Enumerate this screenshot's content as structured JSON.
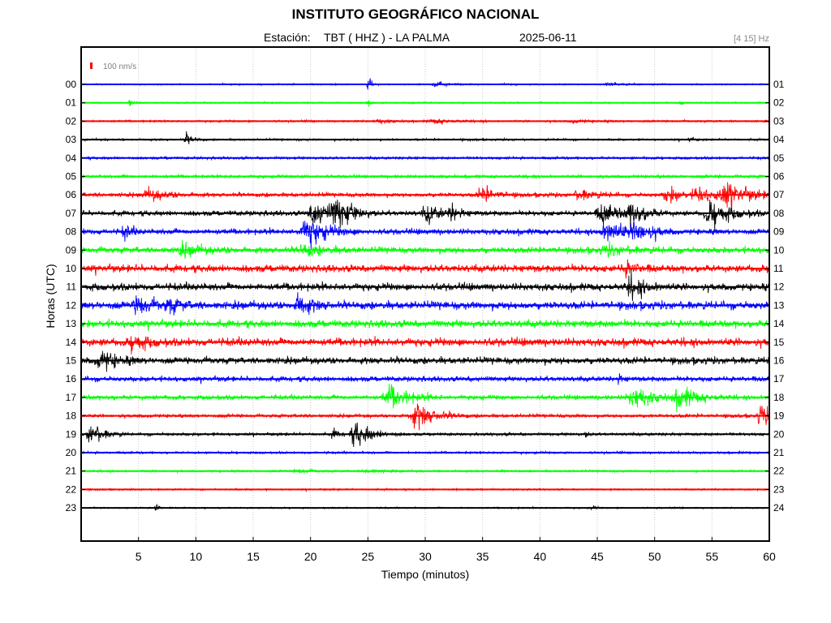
{
  "header": {
    "title": "INSTITUTO GEOGRÁFICO NACIONAL",
    "station_prefix": "Estación:",
    "station": "TBT ( HHZ ) - LA PALMA",
    "date": "2025-06-11",
    "band": "[4 15] Hz"
  },
  "chart_data": {
    "type": "line",
    "xlabel": "Tiempo (minutos)",
    "ylabel": "Horas (UTC)",
    "xlim": [
      0,
      60
    ],
    "x_ticks": [
      5,
      10,
      15,
      20,
      25,
      30,
      35,
      40,
      45,
      50,
      55,
      60
    ],
    "grid": true,
    "scale_label": "100 nm/s",
    "left_tick_labels": [
      "00",
      "01",
      "02",
      "03",
      "04",
      "05",
      "06",
      "07",
      "08",
      "09",
      "10",
      "11",
      "12",
      "13",
      "14",
      "15",
      "16",
      "17",
      "18",
      "19",
      "20",
      "21",
      "22",
      "23"
    ],
    "right_tick_labels": [
      "01",
      "02",
      "03",
      "04",
      "05",
      "06",
      "07",
      "08",
      "09",
      "10",
      "11",
      "12",
      "13",
      "14",
      "15",
      "16",
      "17",
      "18",
      "19",
      "20",
      "21",
      "22",
      "23",
      "24"
    ],
    "trace_colors": [
      "#0000ff",
      "#00ff00",
      "#ff0000",
      "#000000"
    ],
    "traces": [
      {
        "hour": "00",
        "noise": 0.25,
        "events": [
          {
            "t": 25.0,
            "amp": 4.5,
            "dur": 0.25
          },
          {
            "t": 31.0,
            "amp": 0.8,
            "dur": 1.0
          },
          {
            "t": 46.0,
            "amp": 0.7,
            "dur": 1.0
          }
        ]
      },
      {
        "hour": "01",
        "noise": 0.25,
        "events": [
          {
            "t": 4.2,
            "amp": 1.8,
            "dur": 0.25
          },
          {
            "t": 25.0,
            "amp": 1.2,
            "dur": 0.3
          },
          {
            "t": 52.2,
            "amp": 1.1,
            "dur": 0.25
          }
        ]
      },
      {
        "hour": "02",
        "noise": 0.35,
        "events": [
          {
            "t": 26.0,
            "amp": 0.7,
            "dur": 1.0
          },
          {
            "t": 31.0,
            "amp": 0.8,
            "dur": 1.5
          },
          {
            "t": 43.0,
            "amp": 0.6,
            "dur": 1.0
          }
        ]
      },
      {
        "hour": "03",
        "noise": 0.35,
        "events": [
          {
            "t": 9.2,
            "amp": 1.8,
            "dur": 0.6
          },
          {
            "t": 53.0,
            "amp": 1.0,
            "dur": 0.3
          }
        ]
      },
      {
        "hour": "04",
        "noise": 0.45,
        "events": []
      },
      {
        "hour": "05",
        "noise": 0.55,
        "events": []
      },
      {
        "hour": "06",
        "noise": 0.75,
        "events": [
          {
            "t": 6.0,
            "amp": 1.8,
            "dur": 1.5
          },
          {
            "t": 35.0,
            "amp": 3.0,
            "dur": 1.0
          },
          {
            "t": 43.5,
            "amp": 1.8,
            "dur": 1.2
          },
          {
            "t": 51.2,
            "amp": 3.0,
            "dur": 1.0
          },
          {
            "t": 53.8,
            "amp": 3.2,
            "dur": 1.0
          },
          {
            "t": 56.3,
            "amp": 4.5,
            "dur": 1.8
          }
        ]
      },
      {
        "hour": "07",
        "noise": 0.9,
        "events": [
          {
            "t": 20.5,
            "amp": 4.5,
            "dur": 1.5
          },
          {
            "t": 22.3,
            "amp": 5.0,
            "dur": 1.2
          },
          {
            "t": 30.2,
            "amp": 3.2,
            "dur": 1.0
          },
          {
            "t": 32.3,
            "amp": 2.2,
            "dur": 0.8
          },
          {
            "t": 45.5,
            "amp": 3.8,
            "dur": 1.2
          },
          {
            "t": 48.0,
            "amp": 4.0,
            "dur": 1.2
          },
          {
            "t": 55.0,
            "amp": 4.5,
            "dur": 1.5
          }
        ]
      },
      {
        "hour": "08",
        "noise": 1.0,
        "events": [
          {
            "t": 3.8,
            "amp": 2.5,
            "dur": 0.5
          },
          {
            "t": 19.8,
            "amp": 5.0,
            "dur": 1.5
          },
          {
            "t": 46.0,
            "amp": 4.0,
            "dur": 1.5
          },
          {
            "t": 48.5,
            "amp": 3.5,
            "dur": 1.2
          }
        ]
      },
      {
        "hour": "09",
        "noise": 1.1,
        "events": [
          {
            "t": 9.0,
            "amp": 1.8,
            "dur": 1.5
          },
          {
            "t": 19.5,
            "amp": 1.8,
            "dur": 1.5
          },
          {
            "t": 46.0,
            "amp": 1.5,
            "dur": 1.5
          }
        ]
      },
      {
        "hour": "10",
        "noise": 1.3,
        "events": [
          {
            "t": 47.5,
            "amp": 2.0,
            "dur": 1.0
          }
        ]
      },
      {
        "hour": "11",
        "noise": 1.3,
        "events": [
          {
            "t": 48.0,
            "amp": 3.2,
            "dur": 1.2
          }
        ]
      },
      {
        "hour": "12",
        "noise": 1.4,
        "events": [
          {
            "t": 5.0,
            "amp": 3.5,
            "dur": 1.0
          },
          {
            "t": 7.7,
            "amp": 2.4,
            "dur": 1.0
          },
          {
            "t": 19.0,
            "amp": 3.5,
            "dur": 1.0
          }
        ]
      },
      {
        "hour": "13",
        "noise": 1.3,
        "events": []
      },
      {
        "hour": "14",
        "noise": 1.4,
        "events": [
          {
            "t": 4.6,
            "amp": 3.0,
            "dur": 1.0
          }
        ]
      },
      {
        "hour": "15",
        "noise": 1.2,
        "events": [
          {
            "t": 1.8,
            "amp": 3.5,
            "dur": 1.2
          }
        ]
      },
      {
        "hour": "16",
        "noise": 0.9,
        "events": [
          {
            "t": 46.8,
            "amp": 1.8,
            "dur": 0.3
          }
        ]
      },
      {
        "hour": "17",
        "noise": 0.8,
        "events": [
          {
            "t": 27.0,
            "amp": 4.0,
            "dur": 1.5
          },
          {
            "t": 48.3,
            "amp": 3.8,
            "dur": 1.5
          },
          {
            "t": 52.3,
            "amp": 3.5,
            "dur": 1.5
          }
        ]
      },
      {
        "hour": "18",
        "noise": 0.6,
        "events": [
          {
            "t": 29.3,
            "amp": 4.5,
            "dur": 1.5
          },
          {
            "t": 59.3,
            "amp": 4.0,
            "dur": 0.8
          }
        ]
      },
      {
        "hour": "19",
        "noise": 0.5,
        "events": [
          {
            "t": 0.9,
            "amp": 4.0,
            "dur": 1.0
          },
          {
            "t": 22.0,
            "amp": 1.8,
            "dur": 0.5
          },
          {
            "t": 24.0,
            "amp": 4.5,
            "dur": 1.3
          },
          {
            "t": 44.0,
            "amp": 1.2,
            "dur": 0.2
          }
        ]
      },
      {
        "hour": "20",
        "noise": 0.4,
        "events": []
      },
      {
        "hour": "21",
        "noise": 0.35,
        "events": [
          {
            "t": 19.0,
            "amp": 0.8,
            "dur": 1.0
          },
          {
            "t": 25.0,
            "amp": 0.8,
            "dur": 1.0
          }
        ]
      },
      {
        "hour": "22",
        "noise": 0.3,
        "events": []
      },
      {
        "hour": "23",
        "noise": 0.25,
        "events": [
          {
            "t": 6.5,
            "amp": 2.5,
            "dur": 0.2
          },
          {
            "t": 44.5,
            "amp": 1.0,
            "dur": 0.3
          }
        ]
      }
    ]
  }
}
